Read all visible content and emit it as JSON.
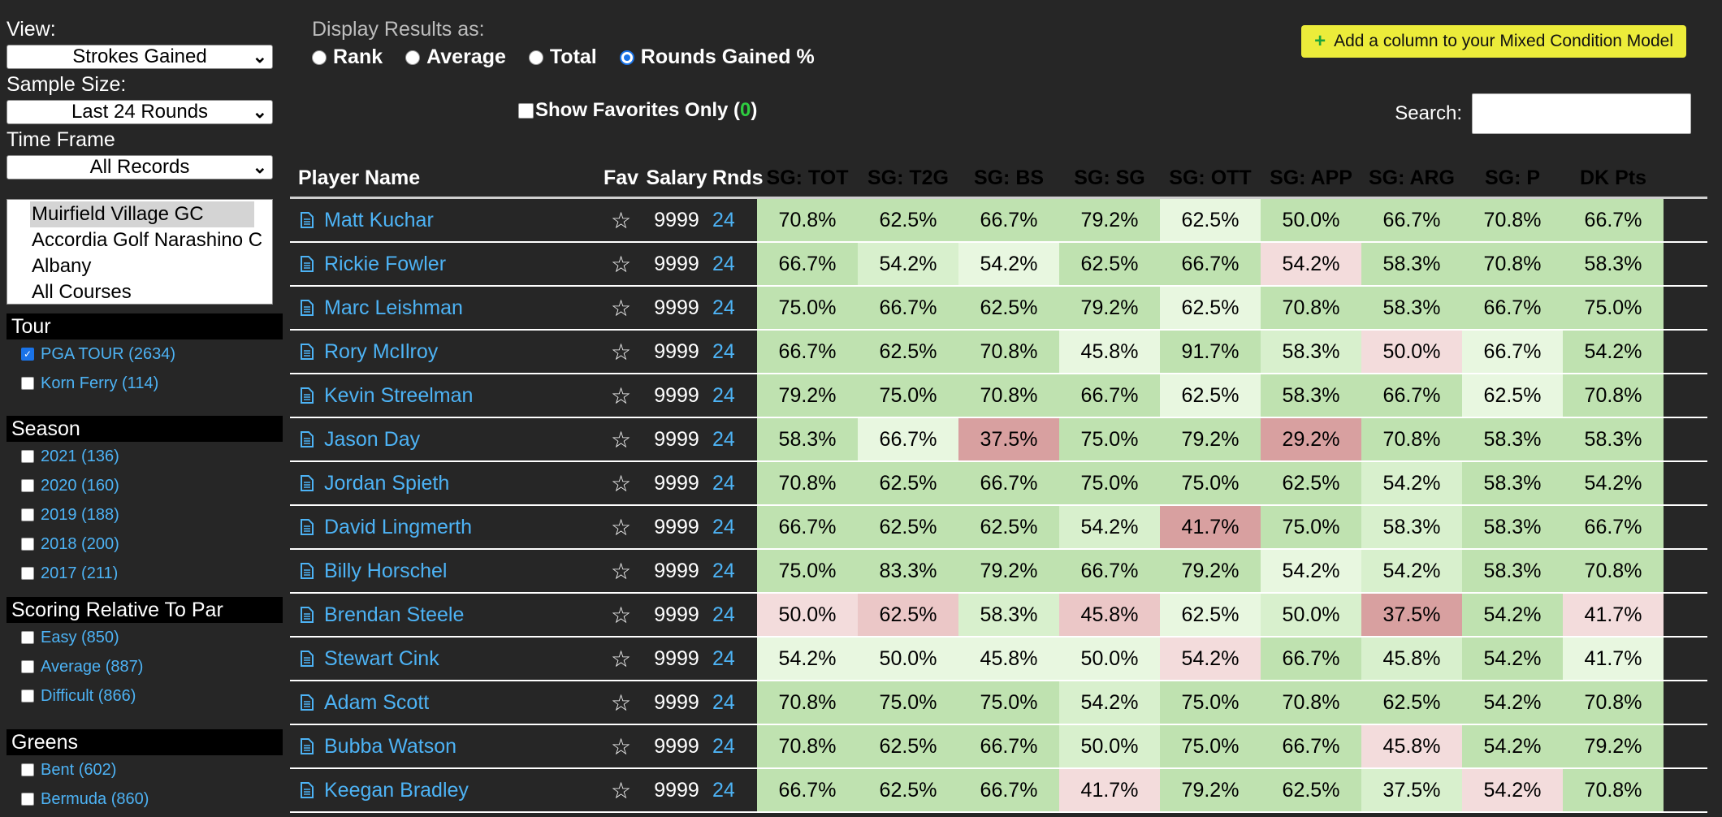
{
  "sidebar": {
    "view_label": "View:",
    "view_value": "Strokes Gained",
    "sample_label": "Sample Size:",
    "sample_value": "Last 24 Rounds",
    "timeframe_label": "Time Frame",
    "timeframe_value": "All Records",
    "courses": [
      "Muirfield Village GC",
      "Accordia Golf Narashino C",
      "Albany",
      "All Courses"
    ],
    "tour": {
      "title": "Tour",
      "items": [
        {
          "label": "PGA TOUR (2634)",
          "checked": true
        },
        {
          "label": "Korn Ferry (114)",
          "checked": false
        }
      ]
    },
    "season": {
      "title": "Season",
      "items": [
        {
          "label": "2021 (136)",
          "checked": false
        },
        {
          "label": "2020 (160)",
          "checked": false
        },
        {
          "label": "2019 (188)",
          "checked": false
        },
        {
          "label": "2018 (200)",
          "checked": false
        },
        {
          "label": "2017 (211)",
          "checked": false
        }
      ]
    },
    "scoring": {
      "title": "Scoring Relative To Par",
      "items": [
        {
          "label": "Easy (850)",
          "checked": false
        },
        {
          "label": "Average (887)",
          "checked": false
        },
        {
          "label": "Difficult (866)",
          "checked": false
        }
      ]
    },
    "greens": {
      "title": "Greens",
      "items": [
        {
          "label": "Bent (602)",
          "checked": false
        },
        {
          "label": "Bermuda (860)",
          "checked": false
        }
      ]
    }
  },
  "display": {
    "label": "Display Results as:",
    "options": [
      "Rank",
      "Average",
      "Total",
      "Rounds Gained %"
    ],
    "selected": "Rounds Gained %"
  },
  "favorites": {
    "label": "Show Favorites Only (",
    "count": "0",
    "close": ")"
  },
  "add_button": {
    "icon": "+",
    "label": "Add a column to your Mixed Condition Model"
  },
  "search": {
    "label": "Search:",
    "value": ""
  },
  "table": {
    "headers": [
      "Player Name",
      "Fav",
      "Salary",
      "Rnds",
      "SG: TOT",
      "SG: T2G",
      "SG: BS",
      "SG: SG",
      "SG: OTT",
      "SG: APP",
      "SG: ARG",
      "SG: P",
      "DK Pts"
    ],
    "rows": [
      {
        "name": "Matt Kuchar",
        "salary": "9999",
        "rnds": "24",
        "stats": [
          "70.8%",
          "62.5%",
          "66.7%",
          "79.2%",
          "62.5%",
          "50.0%",
          "66.7%",
          "70.8%",
          "66.7%"
        ]
      },
      {
        "name": "Rickie Fowler",
        "salary": "9999",
        "rnds": "24",
        "stats": [
          "66.7%",
          "54.2%",
          "54.2%",
          "62.5%",
          "66.7%",
          "54.2%",
          "58.3%",
          "70.8%",
          "58.3%"
        ]
      },
      {
        "name": "Marc Leishman",
        "salary": "9999",
        "rnds": "24",
        "stats": [
          "75.0%",
          "66.7%",
          "62.5%",
          "79.2%",
          "62.5%",
          "70.8%",
          "58.3%",
          "66.7%",
          "75.0%"
        ]
      },
      {
        "name": "Rory McIlroy",
        "salary": "9999",
        "rnds": "24",
        "stats": [
          "66.7%",
          "62.5%",
          "70.8%",
          "45.8%",
          "91.7%",
          "58.3%",
          "50.0%",
          "66.7%",
          "54.2%"
        ]
      },
      {
        "name": "Kevin Streelman",
        "salary": "9999",
        "rnds": "24",
        "stats": [
          "79.2%",
          "75.0%",
          "70.8%",
          "66.7%",
          "62.5%",
          "58.3%",
          "66.7%",
          "62.5%",
          "70.8%"
        ]
      },
      {
        "name": "Jason Day",
        "salary": "9999",
        "rnds": "24",
        "stats": [
          "58.3%",
          "66.7%",
          "37.5%",
          "75.0%",
          "79.2%",
          "29.2%",
          "70.8%",
          "58.3%",
          "58.3%"
        ]
      },
      {
        "name": "Jordan Spieth",
        "salary": "9999",
        "rnds": "24",
        "stats": [
          "70.8%",
          "62.5%",
          "66.7%",
          "75.0%",
          "75.0%",
          "62.5%",
          "54.2%",
          "58.3%",
          "54.2%"
        ]
      },
      {
        "name": "David Lingmerth",
        "salary": "9999",
        "rnds": "24",
        "stats": [
          "66.7%",
          "62.5%",
          "62.5%",
          "54.2%",
          "41.7%",
          "75.0%",
          "58.3%",
          "58.3%",
          "66.7%"
        ]
      },
      {
        "name": "Billy Horschel",
        "salary": "9999",
        "rnds": "24",
        "stats": [
          "75.0%",
          "83.3%",
          "79.2%",
          "66.7%",
          "79.2%",
          "54.2%",
          "54.2%",
          "58.3%",
          "70.8%"
        ]
      },
      {
        "name": "Brendan Steele",
        "salary": "9999",
        "rnds": "24",
        "stats": [
          "50.0%",
          "62.5%",
          "58.3%",
          "45.8%",
          "62.5%",
          "50.0%",
          "37.5%",
          "54.2%",
          "41.7%"
        ]
      },
      {
        "name": "Stewart Cink",
        "salary": "9999",
        "rnds": "24",
        "stats": [
          "54.2%",
          "50.0%",
          "45.8%",
          "50.0%",
          "54.2%",
          "66.7%",
          "45.8%",
          "54.2%",
          "41.7%"
        ]
      },
      {
        "name": "Adam Scott",
        "salary": "9999",
        "rnds": "24",
        "stats": [
          "70.8%",
          "75.0%",
          "75.0%",
          "54.2%",
          "75.0%",
          "70.8%",
          "62.5%",
          "54.2%",
          "70.8%"
        ]
      },
      {
        "name": "Bubba Watson",
        "salary": "9999",
        "rnds": "24",
        "stats": [
          "70.8%",
          "62.5%",
          "66.7%",
          "50.0%",
          "75.0%",
          "66.7%",
          "45.8%",
          "54.2%",
          "79.2%"
        ]
      },
      {
        "name": "Keegan Bradley",
        "salary": "9999",
        "rnds": "24",
        "stats": [
          "66.7%",
          "62.5%",
          "66.7%",
          "41.7%",
          "79.2%",
          "62.5%",
          "37.5%",
          "54.2%",
          "70.8%"
        ]
      }
    ]
  },
  "colors": {
    "dark_green": "#bfe2b0",
    "mid_green": "#d8f0cd",
    "light_green": "#e8f7e0",
    "pale_pink": "#f3dcdc",
    "pink": "#ebc7c7",
    "red": "#d8a0a0",
    "link": "#4db3f5"
  },
  "cell_color_grid": [
    [
      "dg",
      "dg",
      "dg",
      "dg",
      "lg",
      "dg",
      "dg",
      "dg",
      "dg"
    ],
    [
      "dg",
      "mg",
      "lg",
      "dg",
      "dg",
      "pp",
      "dg",
      "dg",
      "dg"
    ],
    [
      "dg",
      "dg",
      "dg",
      "dg",
      "lg",
      "dg",
      "dg",
      "dg",
      "dg"
    ],
    [
      "dg",
      "dg",
      "dg",
      "lg",
      "dg",
      "mg",
      "pp",
      "lg",
      "dg"
    ],
    [
      "dg",
      "dg",
      "dg",
      "dg",
      "lg",
      "dg",
      "dg",
      "lg",
      "dg"
    ],
    [
      "dg",
      "lg",
      "rd",
      "dg",
      "dg",
      "rd",
      "dg",
      "dg",
      "dg"
    ],
    [
      "dg",
      "dg",
      "dg",
      "dg",
      "dg",
      "dg",
      "mg",
      "dg",
      "dg"
    ],
    [
      "dg",
      "dg",
      "dg",
      "mg",
      "rd",
      "dg",
      "mg",
      "dg",
      "dg"
    ],
    [
      "dg",
      "dg",
      "dg",
      "dg",
      "dg",
      "lg",
      "mg",
      "dg",
      "dg"
    ],
    [
      "pp",
      "pk",
      "mg",
      "pk",
      "lg",
      "mg",
      "rd",
      "dg",
      "pp"
    ],
    [
      "lg",
      "lg",
      "lg",
      "lg",
      "pp",
      "dg",
      "mg",
      "dg",
      "lg"
    ],
    [
      "dg",
      "dg",
      "dg",
      "mg",
      "dg",
      "dg",
      "dg",
      "dg",
      "dg"
    ],
    [
      "dg",
      "dg",
      "dg",
      "mg",
      "dg",
      "dg",
      "pp",
      "dg",
      "dg"
    ],
    [
      "dg",
      "dg",
      "dg",
      "pp",
      "dg",
      "dg",
      "mg",
      "pp",
      "dg"
    ]
  ]
}
